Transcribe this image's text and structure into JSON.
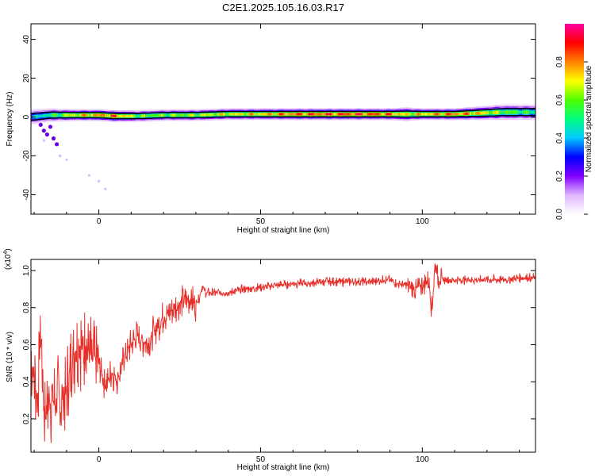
{
  "title": "C2E1.2025.105.16.03.R17",
  "chart_data": [
    {
      "type": "heatmap",
      "xlabel": "Height of straight line (km)",
      "ylabel": "Frequency (Hz)",
      "xlim": [
        -21,
        135
      ],
      "ylim": [
        -50,
        48
      ],
      "xticks": [
        0,
        50,
        100
      ],
      "xtick_labels": [
        "0",
        "50",
        "100"
      ],
      "yticks": [
        -40,
        -20,
        0,
        20,
        40
      ],
      "ytick_labels": [
        "-40",
        "-20",
        "0",
        "20",
        "40"
      ],
      "colorbar": {
        "label": "Normalized spectral amplitude",
        "range": [
          0,
          1
        ],
        "ticks": [
          0,
          0.2,
          0.4,
          0.6,
          0.8
        ],
        "tick_labels": [
          "0.0",
          "0.2",
          "0.4",
          "0.6",
          "0.8"
        ],
        "colormap": [
          "#ffffff",
          "#e0b8ff",
          "#8000ff",
          "#0000ff",
          "#00c8ff",
          "#00ff80",
          "#50ff00",
          "#ffff00",
          "#ff8000",
          "#ff0000",
          "#ff00a0"
        ]
      },
      "band": {
        "description_values": "narrow energy band near 0 Hz along full height range",
        "x": [
          -21,
          -15,
          -8,
          0,
          5,
          12,
          20,
          30,
          40,
          50,
          60,
          70,
          80,
          90,
          95,
          100,
          105,
          110,
          118,
          125,
          135
        ],
        "center_hz": [
          0,
          1,
          1,
          1,
          0.5,
          0.5,
          1,
          1,
          1.5,
          1.5,
          1.5,
          1.5,
          1.5,
          1.5,
          1.5,
          1.5,
          1.5,
          1.5,
          2,
          2.5,
          2.5
        ],
        "half_width_hz": [
          4,
          3.5,
          3,
          3,
          3,
          3,
          3,
          3,
          3,
          3,
          3,
          3,
          3,
          3,
          3.5,
          3,
          3,
          3,
          3.5,
          4,
          4
        ],
        "peak_amplitude": [
          0.45,
          0.6,
          0.8,
          0.9,
          0.95,
          0.7,
          0.7,
          0.75,
          0.8,
          0.85,
          0.95,
          0.98,
          1.0,
          0.95,
          0.8,
          0.85,
          0.9,
          0.95,
          0.85,
          0.7,
          0.6
        ]
      },
      "scatter_low": [
        [
          -18,
          -4
        ],
        [
          -17,
          -7
        ],
        [
          -16,
          -9
        ],
        [
          -15,
          -5
        ],
        [
          -14,
          -11
        ],
        [
          -13,
          -14
        ],
        [
          -17,
          -12
        ],
        [
          -12,
          -20
        ],
        [
          -10,
          -22
        ],
        [
          -3,
          -30
        ],
        [
          0,
          -33
        ],
        [
          2,
          -37
        ]
      ]
    },
    {
      "type": "line",
      "xlabel": "Height of straight line (km)",
      "ylabel": "SNR (10 * v/v)",
      "y_multiplier_label": "(x10",
      "y_multiplier_exp": "4",
      "xlim": [
        -21,
        135
      ],
      "ylim": [
        0.02,
        1.06
      ],
      "xticks": [
        0,
        50,
        100
      ],
      "xtick_labels": [
        "0",
        "50",
        "100"
      ],
      "yticks": [
        0.2,
        0.4,
        0.6,
        0.8,
        1.0
      ],
      "ytick_labels": [
        "0.2",
        "0.4",
        "0.6",
        "0.8",
        "1.0"
      ],
      "color": "#e8302a",
      "series": [
        {
          "x": [
            -21,
            -19,
            -18,
            -17,
            -15,
            -12,
            -10,
            -8,
            -6,
            -4,
            -2,
            0,
            2,
            4,
            6,
            8,
            10,
            12,
            15,
            18,
            20,
            22,
            25,
            28,
            30,
            31,
            32,
            33,
            35,
            40,
            45,
            50,
            55,
            60,
            65,
            70,
            75,
            80,
            85,
            88,
            90,
            92,
            95,
            98,
            100,
            102,
            103,
            104,
            105,
            108,
            110,
            115,
            120,
            125,
            130,
            135
          ],
          "y": [
            0.55,
            0.3,
            0.7,
            0.25,
            0.3,
            0.3,
            0.35,
            0.55,
            0.6,
            0.6,
            0.52,
            0.5,
            0.38,
            0.45,
            0.42,
            0.55,
            0.6,
            0.65,
            0.6,
            0.7,
            0.75,
            0.78,
            0.82,
            0.85,
            0.82,
            0.85,
            0.92,
            0.88,
            0.88,
            0.88,
            0.9,
            0.91,
            0.92,
            0.93,
            0.93,
            0.94,
            0.94,
            0.94,
            0.94,
            0.95,
            0.95,
            0.93,
            0.92,
            0.9,
            0.92,
            0.95,
            0.78,
            1.04,
            0.95,
            0.95,
            0.95,
            0.95,
            0.95,
            0.95,
            0.96,
            0.96
          ]
        }
      ]
    }
  ]
}
